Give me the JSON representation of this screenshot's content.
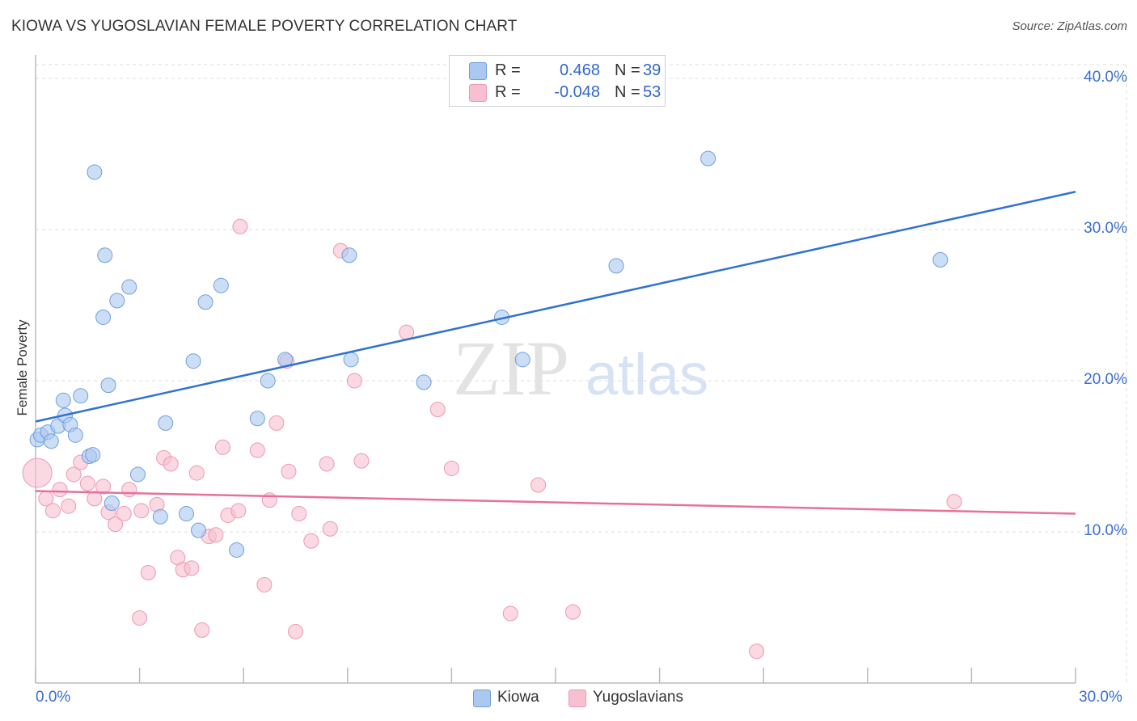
{
  "chart_data": {
    "type": "scatter",
    "title": "KIOWA VS YUGOSLAVIAN FEMALE POVERTY CORRELATION CHART",
    "source": "Source: ZipAtlas.com",
    "xlabel": "",
    "ylabel": "Female Poverty",
    "xlim": [
      0,
      30
    ],
    "ylim": [
      0,
      40
    ],
    "x_tick_labels": [
      "0.0%",
      "30.0%"
    ],
    "y_tick_labels": [
      "10.0%",
      "20.0%",
      "30.0%",
      "40.0%"
    ],
    "y_tick_values": [
      10,
      20,
      30,
      40
    ],
    "grid": true,
    "legend_placement": "top-center",
    "watermark": "ZIPatlas",
    "colors": {
      "kiowa_fill": "#aac8f0",
      "kiowa_stroke": "#6f9fdc",
      "kiowa_line": "#2f72d0",
      "yugo_fill": "#f7c0d0",
      "yugo_stroke": "#ee98b4",
      "yugo_line": "#e8709a",
      "axis_text": "#3a6fd0"
    },
    "legend": [
      {
        "name": "Kiowa",
        "r_label": "R =",
        "r_value": "0.468",
        "n_label": "N =",
        "n_value": "39"
      },
      {
        "name": "Yugoslavians",
        "r_label": "R =",
        "r_value": "-0.048",
        "n_label": "N =",
        "n_value": "53"
      }
    ],
    "series": [
      {
        "name": "Kiowa",
        "trend": {
          "x": [
            0,
            30
          ],
          "y": [
            17.3,
            32.5
          ]
        },
        "points": [
          [
            0.05,
            16.1
          ],
          [
            0.15,
            16.4
          ],
          [
            0.35,
            16.6
          ],
          [
            0.45,
            16.0
          ],
          [
            0.65,
            17.0
          ],
          [
            0.8,
            18.7
          ],
          [
            0.85,
            17.7
          ],
          [
            1.0,
            17.1
          ],
          [
            1.15,
            16.4
          ],
          [
            1.3,
            19.0
          ],
          [
            1.55,
            15.0
          ],
          [
            1.65,
            15.1
          ],
          [
            1.7,
            33.8
          ],
          [
            2.0,
            28.3
          ],
          [
            1.95,
            24.2
          ],
          [
            2.1,
            19.7
          ],
          [
            2.2,
            11.9
          ],
          [
            2.35,
            25.3
          ],
          [
            2.7,
            26.2
          ],
          [
            2.95,
            13.8
          ],
          [
            3.6,
            11.0
          ],
          [
            3.75,
            17.2
          ],
          [
            4.35,
            11.2
          ],
          [
            4.55,
            21.3
          ],
          [
            4.7,
            10.1
          ],
          [
            4.9,
            25.2
          ],
          [
            5.35,
            26.3
          ],
          [
            5.8,
            8.8
          ],
          [
            6.4,
            17.5
          ],
          [
            6.7,
            20.0
          ],
          [
            7.2,
            21.4
          ],
          [
            9.05,
            28.3
          ],
          [
            9.1,
            21.4
          ],
          [
            11.2,
            19.9
          ],
          [
            13.45,
            24.2
          ],
          [
            14.05,
            21.4
          ],
          [
            16.75,
            27.6
          ],
          [
            19.4,
            34.7
          ],
          [
            26.1,
            28.0
          ]
        ]
      },
      {
        "name": "Yugoslavians",
        "trend": {
          "x": [
            0,
            30
          ],
          "y": [
            12.7,
            11.2
          ]
        },
        "points": [
          [
            0.05,
            13.9
          ],
          [
            0.3,
            12.2
          ],
          [
            0.5,
            11.4
          ],
          [
            0.7,
            12.8
          ],
          [
            0.95,
            11.7
          ],
          [
            1.1,
            13.8
          ],
          [
            1.3,
            14.6
          ],
          [
            1.5,
            13.2
          ],
          [
            1.7,
            12.2
          ],
          [
            1.95,
            13.0
          ],
          [
            2.1,
            11.3
          ],
          [
            2.3,
            10.5
          ],
          [
            2.55,
            11.2
          ],
          [
            2.7,
            12.8
          ],
          [
            3.0,
            4.3
          ],
          [
            3.05,
            11.4
          ],
          [
            3.25,
            7.3
          ],
          [
            3.5,
            11.8
          ],
          [
            3.7,
            14.9
          ],
          [
            3.9,
            14.5
          ],
          [
            4.1,
            8.3
          ],
          [
            4.25,
            7.5
          ],
          [
            4.5,
            7.6
          ],
          [
            4.65,
            13.9
          ],
          [
            4.8,
            3.5
          ],
          [
            5.0,
            9.7
          ],
          [
            5.2,
            9.8
          ],
          [
            5.4,
            15.6
          ],
          [
            5.55,
            11.1
          ],
          [
            5.85,
            11.4
          ],
          [
            5.9,
            30.2
          ],
          [
            6.4,
            15.4
          ],
          [
            6.6,
            6.5
          ],
          [
            6.75,
            12.1
          ],
          [
            6.95,
            17.2
          ],
          [
            7.25,
            21.3
          ],
          [
            7.3,
            14.0
          ],
          [
            7.5,
            3.4
          ],
          [
            7.6,
            11.2
          ],
          [
            7.95,
            9.4
          ],
          [
            8.4,
            14.5
          ],
          [
            8.5,
            10.2
          ],
          [
            8.8,
            28.6
          ],
          [
            9.2,
            20.0
          ],
          [
            9.4,
            14.7
          ],
          [
            10.7,
            23.2
          ],
          [
            11.6,
            18.1
          ],
          [
            12.0,
            14.2
          ],
          [
            13.7,
            4.6
          ],
          [
            14.5,
            13.1
          ],
          [
            15.5,
            4.7
          ],
          [
            20.8,
            2.1
          ],
          [
            26.5,
            12.0
          ]
        ]
      }
    ]
  }
}
